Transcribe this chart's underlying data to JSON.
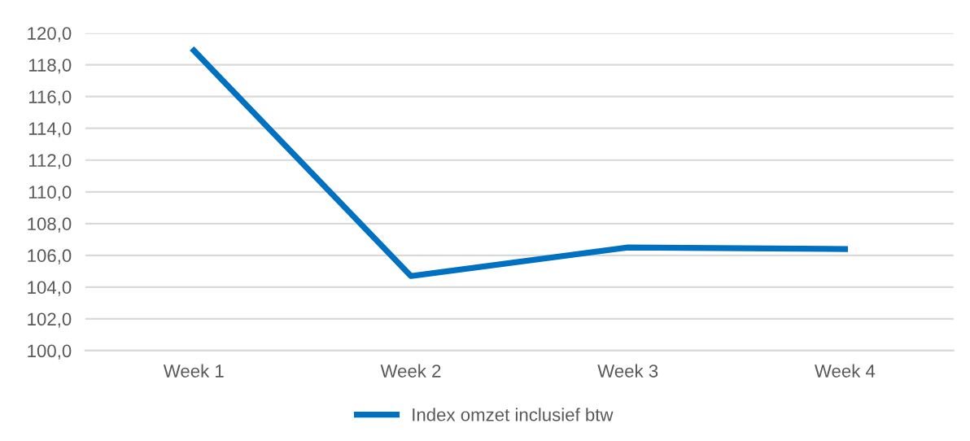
{
  "chart_data": {
    "type": "line",
    "categories": [
      "Week 1",
      "Week 2",
      "Week 3",
      "Week 4"
    ],
    "series": [
      {
        "name": "Index omzet inclusief btw",
        "color": "#0070c0",
        "values": [
          118.9,
          104.7,
          106.5,
          106.4
        ]
      }
    ],
    "ylim": [
      100,
      120
    ],
    "yticks": [
      {
        "value": 100,
        "label": "100,0"
      },
      {
        "value": 102,
        "label": "102,0"
      },
      {
        "value": 104,
        "label": "104,0"
      },
      {
        "value": 106,
        "label": "106,0"
      },
      {
        "value": 108,
        "label": "108,0"
      },
      {
        "value": 110,
        "label": "110,0"
      },
      {
        "value": 112,
        "label": "112,0"
      },
      {
        "value": 114,
        "label": "114,0"
      },
      {
        "value": 116,
        "label": "116,0"
      },
      {
        "value": 118,
        "label": "118,0"
      },
      {
        "value": 120,
        "label": "120,0"
      }
    ],
    "grid": "y",
    "legend": "bottom",
    "marker": "none",
    "line_style": "solid"
  }
}
